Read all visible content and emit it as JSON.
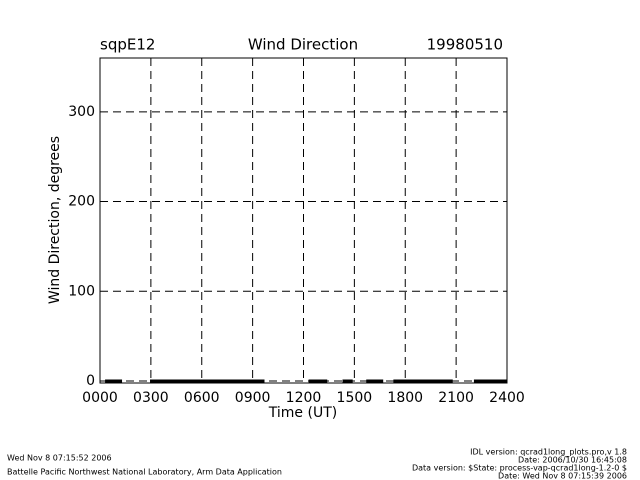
{
  "chart_data": {
    "type": "line",
    "title": "Wind Direction",
    "site": "sqpE12",
    "date": "19980510",
    "xlabel": "Time (UT)",
    "ylabel": "Wind Direction, degrees",
    "x": [
      30,
      130,
      180,
      295,
      970,
      1100,
      1230,
      1340,
      1390,
      1430,
      1490,
      1530,
      1570,
      1670,
      1700,
      1730,
      2080,
      2150,
      2205,
      2400
    ],
    "series": [
      {
        "name": "Wind Direction",
        "color": "#000000",
        "values": [
          0,
          0,
          null,
          0,
          0,
          null,
          0,
          0,
          null,
          0,
          0,
          null,
          0,
          0,
          null,
          0,
          0,
          null,
          0,
          0
        ]
      }
    ],
    "xlim": [
      0,
      2400
    ],
    "xticks": [
      {
        "value": 0,
        "label": "0000"
      },
      {
        "value": 300,
        "label": "0300"
      },
      {
        "value": 600,
        "label": "0600"
      },
      {
        "value": 900,
        "label": "0900"
      },
      1200,
      1500,
      1800,
      2100,
      2400
    ],
    "ylim": [
      0,
      360
    ],
    "yticks": [
      0,
      100,
      200,
      300
    ],
    "grid": true
  },
  "footer": {
    "left": [
      "Wed Nov  8 07:15:52 2006",
      "Battelle Pacific Northwest National Laboratory, Arm Data Application"
    ],
    "right": [
      "IDL version: qcrad1long_plots.pro,v 1.8",
      "Date: 2006/10/30 16:45:08",
      "Data version: $State: process-vap-qcrad1long-1.2-0 $",
      "Date: Wed Nov  8 07:15:39 2006"
    ]
  }
}
